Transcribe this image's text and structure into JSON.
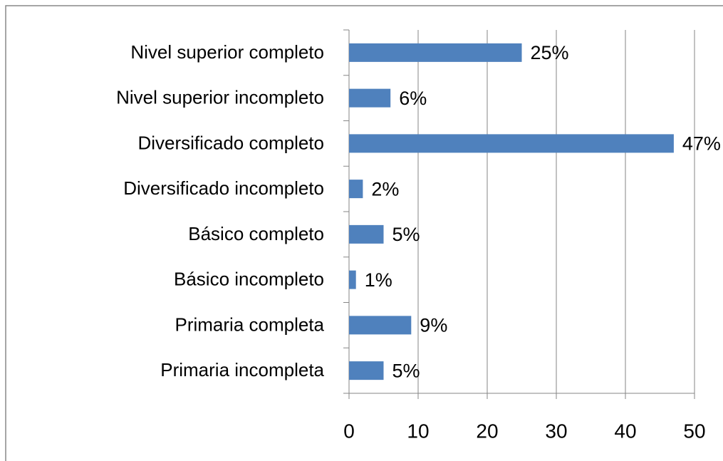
{
  "chart_data": {
    "type": "bar",
    "orientation": "horizontal",
    "categories": [
      "Nivel superior completo",
      "Nivel superior incompleto",
      "Diversificado completo",
      "Diversificado incompleto",
      "Básico completo",
      "Básico incompleto",
      "Primaria completa",
      "Primaria incompleta"
    ],
    "values": [
      25,
      6,
      47,
      2,
      5,
      1,
      9,
      5
    ],
    "value_labels": [
      "25%",
      "6%",
      "47%",
      "2%",
      "5%",
      "1%",
      "9%",
      "5%"
    ],
    "color": "#4f81bd",
    "xlim": [
      0,
      50
    ],
    "xticks": [
      0,
      10,
      20,
      30,
      40,
      50
    ],
    "grid": true
  }
}
